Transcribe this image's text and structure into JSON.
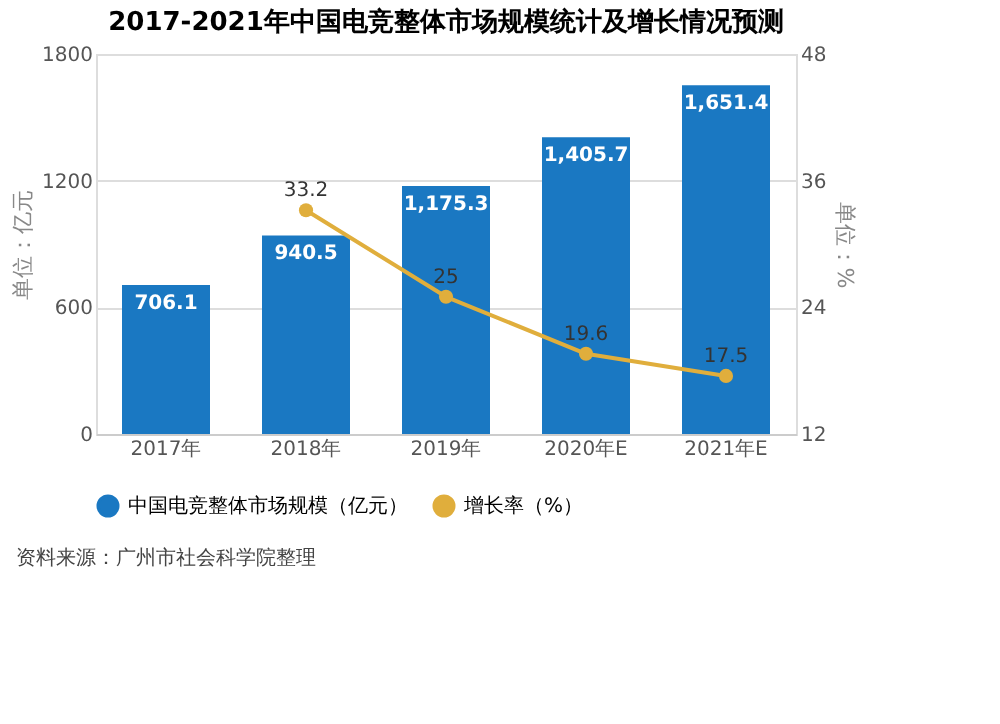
{
  "chart_data": {
    "type": "bar",
    "title": "2017-2021年中国电竞整体市场规模统计及增长情况预测",
    "categories": [
      "2017年",
      "2018年",
      "2019年",
      "2020年E",
      "2021年E"
    ],
    "series": [
      {
        "name": "中国电竞整体市场规模（亿元）",
        "color": "#1a78c2",
        "values": [
          706.1,
          940.5,
          1175.3,
          1405.7,
          1651.4
        ],
        "value_labels": [
          "706.1",
          "940.5",
          "1,175.3",
          "1,405.7",
          "1,651.4"
        ]
      },
      {
        "name": "增长率（%）",
        "type": "line",
        "axis": "y2",
        "color": "#e0ae3c",
        "marker": "circle",
        "values": [
          null,
          33.2,
          25.0,
          19.6,
          17.5
        ],
        "value_labels": [
          null,
          "33.2",
          "25",
          "19.6",
          "17.5"
        ]
      }
    ],
    "ylabel": "单位：亿元",
    "y2label": "单位：%",
    "ylim": [
      0,
      1800
    ],
    "yticks": [
      0,
      600,
      1200,
      1800
    ],
    "y2lim": [
      12,
      48
    ],
    "y2ticks": [
      12,
      24,
      36,
      48
    ],
    "grid": "y",
    "legend": "bottom",
    "annotations": [
      "资料来源：广州市社会科学院整理"
    ]
  }
}
